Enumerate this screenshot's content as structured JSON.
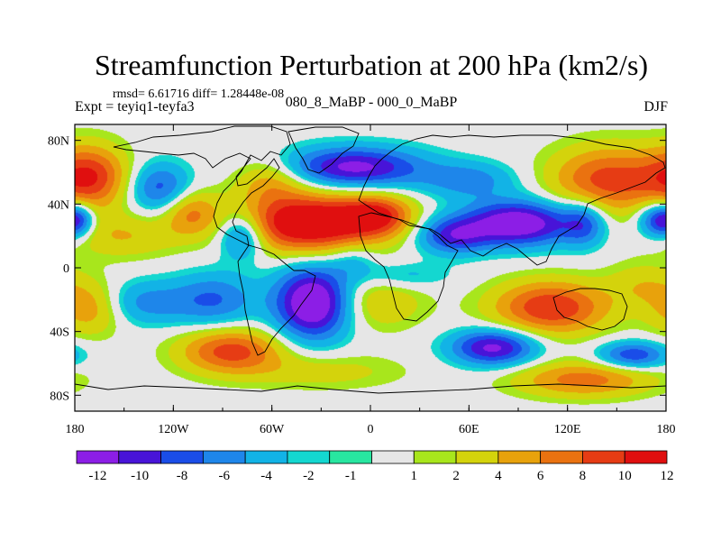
{
  "chart_data": {
    "type": "heatmap",
    "title": "Streamfunction Perturbation at 200 hPa (km2/s)",
    "left_top_line": "rmsd= 6.61716 diff= 1.28448e-08",
    "left_string": "Expt = teyiq1-teyfa3",
    "center_string": "080_8_MaBP - 000_0_MaBP",
    "right_string": "DJF",
    "x_range": [
      -180,
      180
    ],
    "y_range": [
      -90,
      90
    ],
    "x_ticks": [
      {
        "value": -180,
        "label": "180"
      },
      {
        "value": -120,
        "label": "120W"
      },
      {
        "value": -60,
        "label": "60W"
      },
      {
        "value": 0,
        "label": "0"
      },
      {
        "value": 60,
        "label": "60E"
      },
      {
        "value": 120,
        "label": "120E"
      },
      {
        "value": 180,
        "label": "180"
      }
    ],
    "y_ticks": [
      {
        "value": 80,
        "label": "80N"
      },
      {
        "value": 40,
        "label": "40N"
      },
      {
        "value": 0,
        "label": "0"
      },
      {
        "value": -40,
        "label": "40S"
      },
      {
        "value": -80,
        "label": "80S"
      }
    ],
    "levels": [
      -12,
      -10,
      -8,
      -6,
      -4,
      -2,
      -1,
      1,
      2,
      4,
      6,
      8,
      10,
      12
    ],
    "level_labels": [
      "-12",
      "-10",
      "-8",
      "-6",
      "-4",
      "-2",
      "-1",
      "1",
      "2",
      "4",
      "6",
      "8",
      "10",
      "12"
    ],
    "colors": [
      "#8c1ee6",
      "#4814d8",
      "#1a4de8",
      "#1e86ea",
      "#12b3e6",
      "#14d7d0",
      "#28e6a0",
      "#e6e6e6",
      "#a8e61c",
      "#d4d30c",
      "#e8a20c",
      "#ea7210",
      "#e63c14",
      "#e00f0f"
    ],
    "field_centers": [
      {
        "lon": -37,
        "lat": 28,
        "value": 14,
        "spread_lon": 30,
        "spread_lat": 13
      },
      {
        "lon": 5,
        "lat": 33,
        "value": 8,
        "spread_lon": 15,
        "spread_lat": 9
      },
      {
        "lon": -35,
        "lat": -22,
        "value": -14,
        "spread_lon": 16,
        "spread_lat": 16
      },
      {
        "lon": 90,
        "lat": 28,
        "value": -13,
        "spread_lon": 24,
        "spread_lat": 10
      },
      {
        "lon": 50,
        "lat": 20,
        "value": -8,
        "spread_lon": 15,
        "spread_lat": 8
      },
      {
        "lon": -170,
        "lat": 57,
        "value": 9,
        "spread_lon": 16,
        "spread_lat": 14
      },
      {
        "lon": 145,
        "lat": 55,
        "value": 9,
        "spread_lon": 25,
        "spread_lat": 15
      },
      {
        "lon": -10,
        "lat": 63,
        "value": -11,
        "spread_lon": 30,
        "spread_lat": 9
      },
      {
        "lon": 130,
        "lat": 28,
        "value": -6,
        "spread_lon": 9,
        "spread_lat": 10
      },
      {
        "lon": 175,
        "lat": 30,
        "value": -8,
        "spread_lon": 9,
        "spread_lat": 8
      },
      {
        "lon": -178,
        "lat": 30,
        "value": -6,
        "spread_lon": 7,
        "spread_lat": 7
      },
      {
        "lon": -128,
        "lat": 50,
        "value": -7,
        "spread_lon": 13,
        "spread_lat": 11
      },
      {
        "lon": -110,
        "lat": 35,
        "value": 6,
        "spread_lon": 12,
        "spread_lat": 10
      },
      {
        "lon": -150,
        "lat": 20,
        "value": 4,
        "spread_lon": 25,
        "spread_lat": 10
      },
      {
        "lon": -78,
        "lat": 20,
        "value": -8,
        "spread_lon": 10,
        "spread_lat": 10
      },
      {
        "lon": -95,
        "lat": -20,
        "value": -6,
        "spread_lon": 18,
        "spread_lat": 12
      },
      {
        "lon": -140,
        "lat": -22,
        "value": -5,
        "spread_lon": 20,
        "spread_lat": 10
      },
      {
        "lon": -170,
        "lat": -25,
        "value": 6,
        "spread_lon": 15,
        "spread_lat": 12
      },
      {
        "lon": -85,
        "lat": -52,
        "value": 9,
        "spread_lon": 22,
        "spread_lat": 10
      },
      {
        "lon": 5,
        "lat": -22,
        "value": 4,
        "spread_lon": 20,
        "spread_lat": 12
      },
      {
        "lon": 110,
        "lat": -25,
        "value": 10,
        "spread_lon": 25,
        "spread_lat": 12
      },
      {
        "lon": 75,
        "lat": -50,
        "value": -11,
        "spread_lon": 18,
        "spread_lat": 8
      },
      {
        "lon": 160,
        "lat": -55,
        "value": -8,
        "spread_lon": 15,
        "spread_lat": 6
      },
      {
        "lon": 130,
        "lat": -70,
        "value": 7,
        "spread_lon": 30,
        "spread_lat": 8
      },
      {
        "lon": -30,
        "lat": -65,
        "value": 3,
        "spread_lon": 35,
        "spread_lat": 8
      },
      {
        "lon": -60,
        "lat": 55,
        "value": 5,
        "spread_lon": 15,
        "spread_lat": 10
      },
      {
        "lon": 60,
        "lat": 55,
        "value": -5,
        "spread_lon": 20,
        "spread_lat": 8
      },
      {
        "lon": 20,
        "lat": -5,
        "value": -3,
        "spread_lon": 20,
        "spread_lat": 6
      },
      {
        "lon": -10,
        "lat": 5,
        "value": -3,
        "spread_lon": 10,
        "spread_lat": 8
      },
      {
        "lon": 165,
        "lat": -10,
        "value": 3,
        "spread_lon": 15,
        "spread_lat": 10
      }
    ]
  }
}
